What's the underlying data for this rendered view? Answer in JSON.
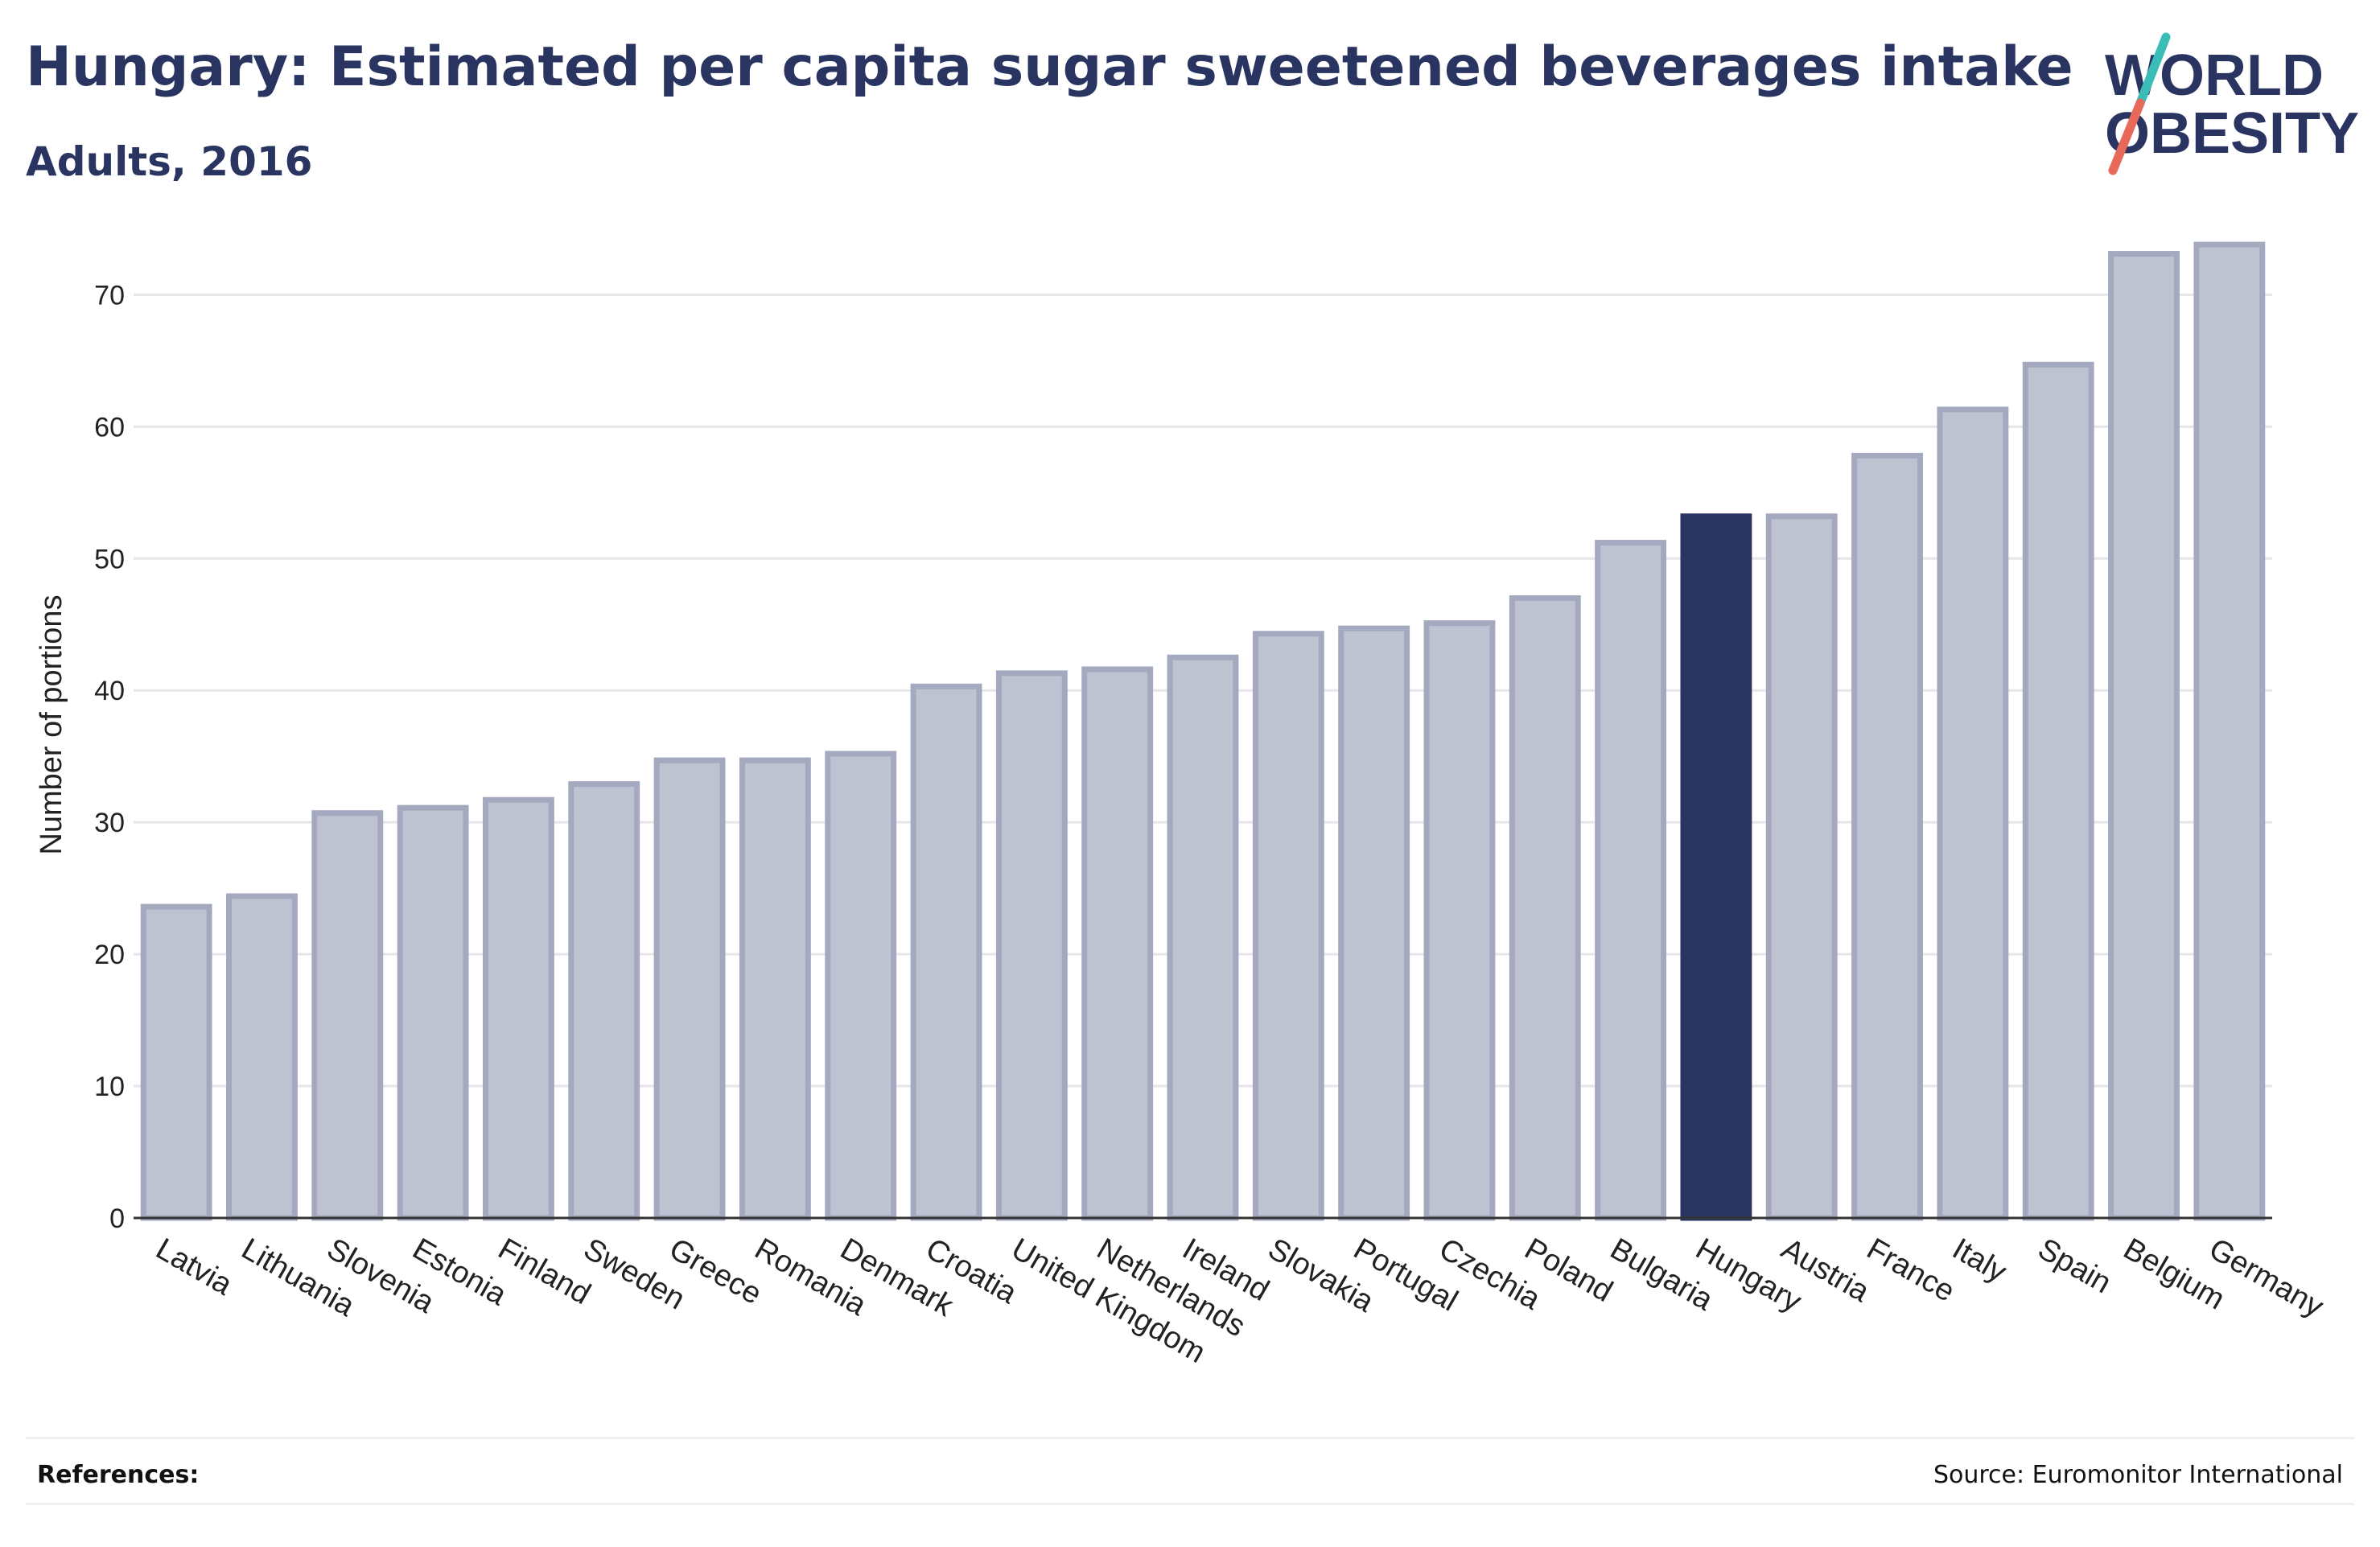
{
  "header": {
    "title": "Hungary: Estimated per capita sugar sweetened beverages intake",
    "subtitle": "Adults, 2016"
  },
  "logo": {
    "line1": "WORLD",
    "line2": "OBESITY",
    "colors": {
      "text": "#2a3461",
      "slash_top": "#3bbdb7",
      "slash_bottom": "#e8695a"
    }
  },
  "footer": {
    "references_label": "References:",
    "source": "Source: Euromonitor International"
  },
  "colors": {
    "bar": "#bfc2d0",
    "bar_border": "#a4a9bf",
    "highlight": "#2a3461",
    "grid": "#e6e6ea",
    "axis": "#333333"
  },
  "chart_data": {
    "type": "bar",
    "title": "Hungary: Estimated per capita sugar sweetened beverages intake",
    "subtitle": "Adults, 2016",
    "xlabel": "",
    "ylabel": "Number of portions",
    "ylim": [
      0,
      76
    ],
    "yticks": [
      0,
      10,
      20,
      30,
      40,
      50,
      60,
      70
    ],
    "grid": true,
    "highlight": "Hungary",
    "categories": [
      "Latvia",
      "Lithuania",
      "Slovenia",
      "Estonia",
      "Finland",
      "Sweden",
      "Greece",
      "Romania",
      "Denmark",
      "Croatia",
      "United Kingdom",
      "Netherlands",
      "Ireland",
      "Slovakia",
      "Portugal",
      "Czechia",
      "Poland",
      "Bulgaria",
      "Hungary",
      "Austria",
      "France",
      "Italy",
      "Spain",
      "Belgium",
      "Germany"
    ],
    "values": [
      23.6,
      24.4,
      30.7,
      31.1,
      31.7,
      32.9,
      34.7,
      34.7,
      35.2,
      40.3,
      41.3,
      41.6,
      42.5,
      44.3,
      44.7,
      45.1,
      47.0,
      51.2,
      53.2,
      53.2,
      57.8,
      61.3,
      64.7,
      73.1,
      73.8
    ]
  }
}
